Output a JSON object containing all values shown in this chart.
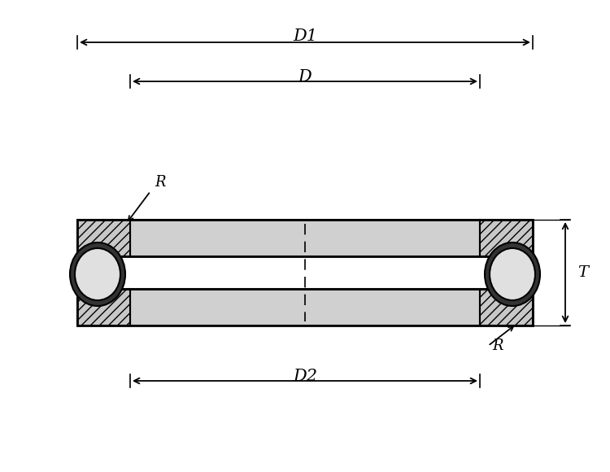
{
  "bg_color": "#ffffff",
  "line_color": "#000000",
  "hatch_color": "#000000",
  "fill_color": "#d0d0d0",
  "ball_color": "#e0e0e0",
  "fig_width": 7.5,
  "fig_height": 5.8,
  "dpi": 100,
  "labels": {
    "D1": "D1",
    "D": "D",
    "D2": "D2",
    "T": "T",
    "R_top": "R",
    "R_bot": "R"
  },
  "font_size": 14,
  "italic_font": "italic"
}
